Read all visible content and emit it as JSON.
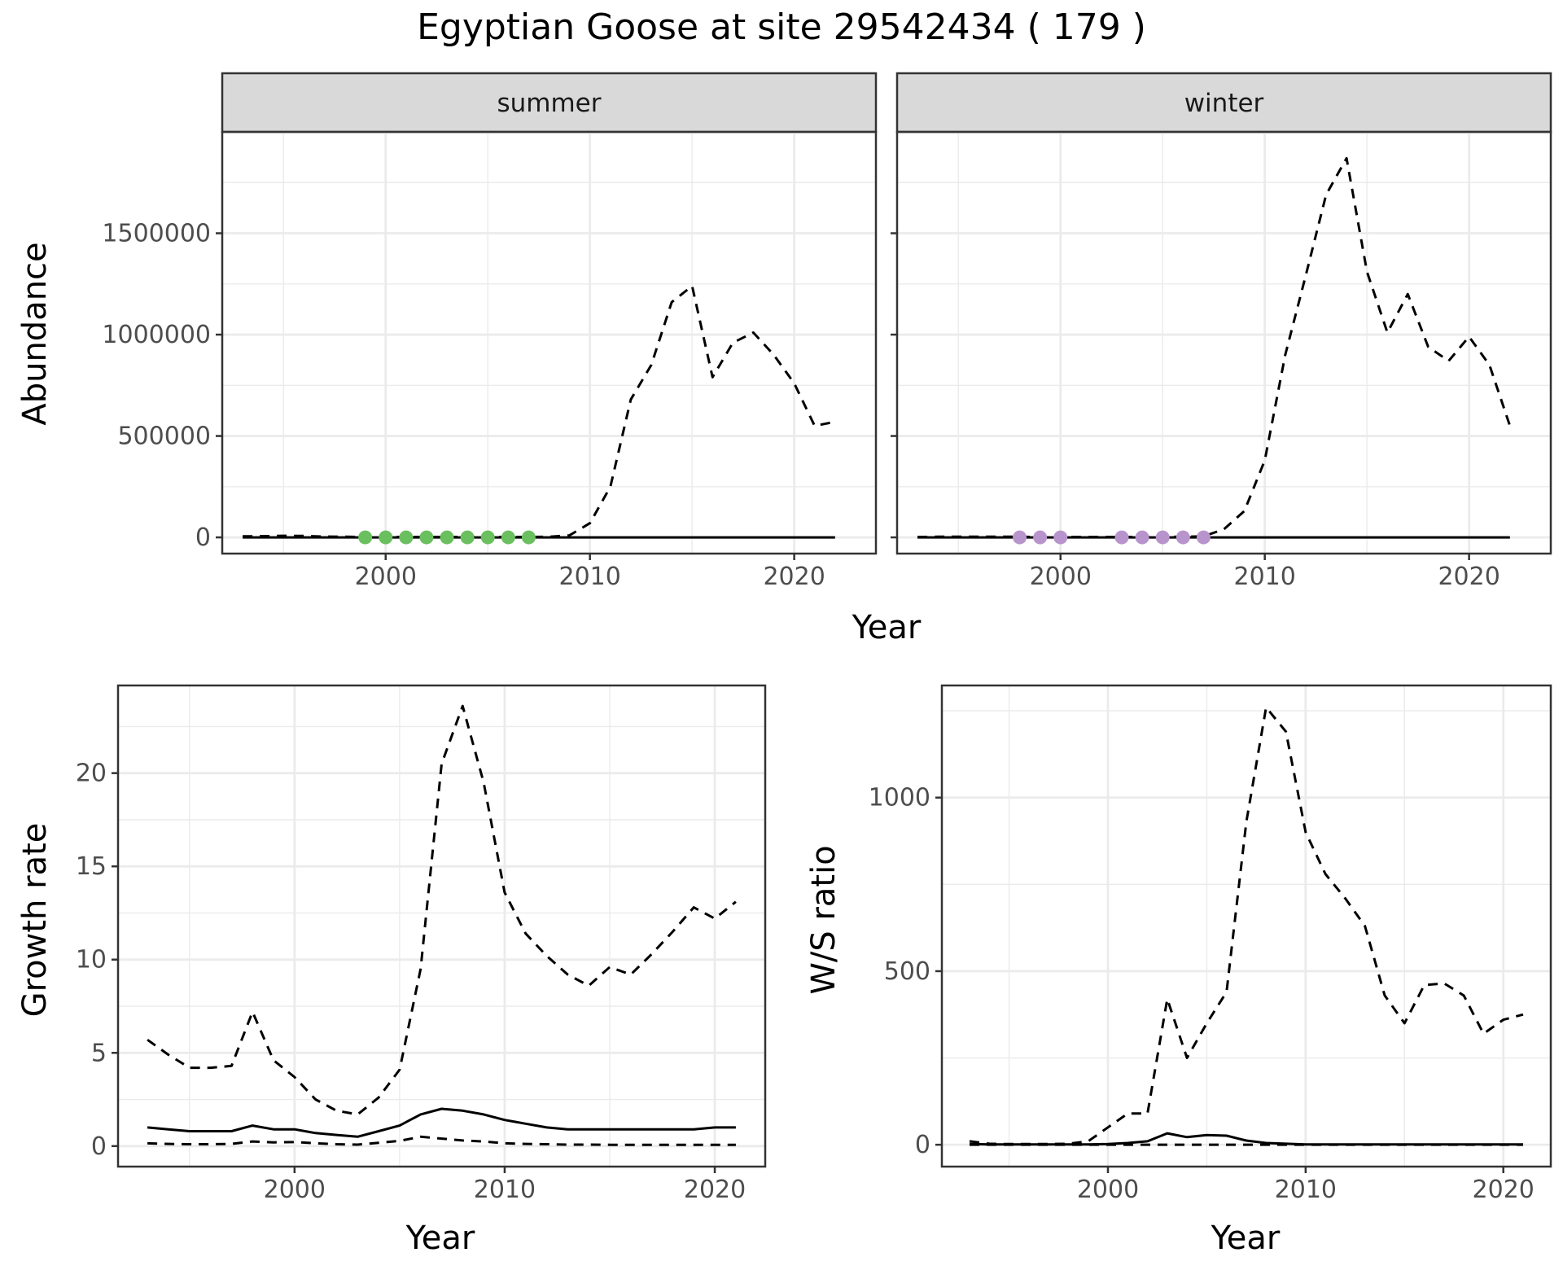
{
  "title": "Egyptian Goose at site 29542434 ( 179 )",
  "chart_data": [
    {
      "type": "line",
      "panel": "summer",
      "strip_label": "summer",
      "xlabel": "Year",
      "ylabel": "Abundance",
      "xlim": [
        1992,
        2024
      ],
      "ylim": [
        -80000,
        2000000
      ],
      "x_ticks": [
        2000,
        2010,
        2020
      ],
      "y_ticks": [
        0,
        500000,
        1000000,
        1500000
      ],
      "y_tick_labels": [
        "0",
        "500000",
        "1000000",
        "1500000"
      ],
      "grid": true,
      "series": [
        {
          "style": "dashed",
          "x": [
            1993,
            1994,
            1995,
            1996,
            1997,
            1998,
            1999,
            2000,
            2001,
            2002,
            2003,
            2004,
            2005,
            2006,
            2007,
            2008,
            2009,
            2010,
            2011,
            2012,
            2013,
            2014,
            2015,
            2016,
            2017,
            2018,
            2019,
            2020,
            2021,
            2022
          ],
          "y": [
            5000,
            6000,
            8000,
            7000,
            4000,
            3000,
            2000,
            2000,
            2000,
            2000,
            2000,
            2000,
            2000,
            2000,
            2000,
            3000,
            10000,
            70000,
            250000,
            680000,
            850000,
            1160000,
            1240000,
            790000,
            960000,
            1010000,
            900000,
            760000,
            550000,
            570000
          ]
        },
        {
          "style": "solid",
          "x": [
            1993,
            2022
          ],
          "y": [
            0,
            0
          ]
        }
      ],
      "observed_points": {
        "color": "#6ABF5E",
        "x": [
          1999,
          2000,
          2001,
          2002,
          2003,
          2004,
          2005,
          2006,
          2007
        ],
        "y": [
          0,
          0,
          0,
          0,
          0,
          0,
          0,
          0,
          0
        ]
      }
    },
    {
      "type": "line",
      "panel": "winter",
      "strip_label": "winter",
      "xlabel": "Year",
      "ylabel": "Abundance",
      "xlim": [
        1992,
        2024
      ],
      "ylim": [
        -80000,
        2000000
      ],
      "x_ticks": [
        2000,
        2010,
        2020
      ],
      "y_ticks": [
        0,
        500000,
        1000000,
        1500000
      ],
      "grid": true,
      "series": [
        {
          "style": "dashed",
          "x": [
            1993,
            1994,
            1995,
            1996,
            1997,
            1998,
            1999,
            2000,
            2001,
            2002,
            2003,
            2004,
            2005,
            2006,
            2007,
            2008,
            2009,
            2010,
            2011,
            2012,
            2013,
            2014,
            2015,
            2016,
            2017,
            2018,
            2019,
            2020,
            2021,
            2022
          ],
          "y": [
            2000,
            3000,
            3000,
            3000,
            3000,
            3000,
            2000,
            2000,
            2000,
            2000,
            2000,
            2000,
            2000,
            3000,
            5000,
            40000,
            130000,
            380000,
            900000,
            1290000,
            1690000,
            1870000,
            1310000,
            1010000,
            1200000,
            940000,
            870000,
            990000,
            850000,
            550000
          ]
        },
        {
          "style": "solid",
          "x": [
            1993,
            2022
          ],
          "y": [
            0,
            0
          ]
        }
      ],
      "observed_points": {
        "color": "#B894CC",
        "x": [
          1998,
          1999,
          2000,
          2003,
          2004,
          2005,
          2006,
          2007
        ],
        "y": [
          0,
          0,
          0,
          0,
          0,
          0,
          0,
          0
        ]
      }
    },
    {
      "type": "line",
      "panel": "growth",
      "xlabel": "Year",
      "ylabel": "Growth rate",
      "xlim": [
        1991.6,
        2022.4
      ],
      "ylim": [
        -1.1,
        24.7
      ],
      "x_ticks": [
        2000,
        2010,
        2020
      ],
      "y_ticks": [
        0,
        5,
        10,
        15,
        20
      ],
      "grid": true,
      "series": [
        {
          "style": "dashed",
          "x": [
            1993,
            1994,
            1995,
            1996,
            1997,
            1998,
            1999,
            2000,
            2001,
            2002,
            2003,
            2004,
            2005,
            2006,
            2007,
            2008,
            2009,
            2010,
            2011,
            2012,
            2013,
            2014,
            2015,
            2016,
            2017,
            2018,
            2019,
            2020,
            2021
          ],
          "y": [
            5.7,
            4.9,
            4.2,
            4.2,
            4.3,
            7.2,
            4.6,
            3.7,
            2.5,
            1.9,
            1.7,
            2.6,
            4.1,
            9.5,
            20.5,
            23.6,
            19.5,
            13.6,
            11.4,
            10.2,
            9.2,
            8.6,
            9.6,
            9.2,
            10.3,
            11.5,
            12.8,
            12.2,
            13.1
          ]
        },
        {
          "style": "solid",
          "x": [
            1993,
            1994,
            1995,
            1996,
            1997,
            1998,
            1999,
            2000,
            2001,
            2002,
            2003,
            2004,
            2005,
            2006,
            2007,
            2008,
            2009,
            2010,
            2011,
            2012,
            2013,
            2014,
            2015,
            2016,
            2017,
            2018,
            2019,
            2020,
            2021
          ],
          "y": [
            1.0,
            0.9,
            0.8,
            0.8,
            0.8,
            1.1,
            0.9,
            0.9,
            0.7,
            0.6,
            0.5,
            0.8,
            1.1,
            1.7,
            2.0,
            1.9,
            1.7,
            1.4,
            1.2,
            1.0,
            0.9,
            0.9,
            0.9,
            0.9,
            0.9,
            0.9,
            0.9,
            1.0,
            1.0
          ]
        },
        {
          "style": "dashed",
          "x": [
            1993,
            1994,
            1995,
            1996,
            1997,
            1998,
            1999,
            2000,
            2001,
            2002,
            2003,
            2004,
            2005,
            2006,
            2007,
            2008,
            2009,
            2010,
            2011,
            2012,
            2013,
            2014,
            2015,
            2016,
            2017,
            2018,
            2019,
            2020,
            2021
          ],
          "y": [
            0.15,
            0.12,
            0.1,
            0.1,
            0.12,
            0.25,
            0.2,
            0.22,
            0.15,
            0.1,
            0.08,
            0.18,
            0.28,
            0.5,
            0.4,
            0.3,
            0.25,
            0.15,
            0.12,
            0.1,
            0.08,
            0.08,
            0.07,
            0.07,
            0.07,
            0.07,
            0.07,
            0.07,
            0.07
          ]
        }
      ]
    },
    {
      "type": "line",
      "panel": "ws_ratio",
      "xlabel": "Year",
      "ylabel": "W/S ratio",
      "xlim": [
        1991.6,
        2022.4
      ],
      "ylim": [
        -63,
        1323
      ],
      "x_ticks": [
        2000,
        2010,
        2020
      ],
      "y_ticks": [
        0,
        500,
        1000
      ],
      "grid": true,
      "series": [
        {
          "style": "dashed",
          "x": [
            1993,
            1994,
            1995,
            1996,
            1997,
            1998,
            1999,
            2000,
            2001,
            2002,
            2003,
            2004,
            2005,
            2006,
            2007,
            2008,
            2009,
            2010,
            2011,
            2012,
            2013,
            2014,
            2015,
            2016,
            2017,
            2018,
            2019,
            2020,
            2021
          ],
          "y": [
            10,
            3,
            2,
            2,
            2,
            3,
            10,
            50,
            90,
            90,
            420,
            250,
            350,
            440,
            930,
            1260,
            1190,
            900,
            780,
            710,
            630,
            430,
            350,
            460,
            465,
            430,
            320,
            360,
            375
          ]
        },
        {
          "style": "solid",
          "x": [
            1993,
            1994,
            1995,
            1996,
            1997,
            1998,
            1999,
            2000,
            2001,
            2002,
            2003,
            2004,
            2005,
            2006,
            2007,
            2008,
            2009,
            2010,
            2011,
            2012,
            2013,
            2014,
            2015,
            2016,
            2017,
            2018,
            2019,
            2020,
            2021
          ],
          "y": [
            2,
            1,
            1,
            1,
            1,
            1,
            1,
            2,
            5,
            10,
            33,
            22,
            28,
            26,
            12,
            5,
            3,
            1,
            1,
            1,
            1,
            1,
            1,
            1,
            1,
            1,
            1,
            1,
            1
          ]
        },
        {
          "style": "dashed",
          "x": [
            1993,
            1994,
            1995,
            1996,
            1997,
            1998,
            1999,
            2000,
            2001,
            2002,
            2003,
            2004,
            2005,
            2006,
            2007,
            2008,
            2009,
            2010,
            2011,
            2012,
            2013,
            2014,
            2015,
            2016,
            2017,
            2018,
            2019,
            2020,
            2021
          ],
          "y": [
            0,
            0,
            0,
            0,
            0,
            0,
            0,
            0,
            0,
            0,
            0,
            0,
            0,
            0,
            0,
            0,
            0,
            0,
            0,
            0,
            0,
            0,
            0,
            0,
            0,
            0,
            0,
            0,
            0
          ]
        }
      ]
    }
  ]
}
